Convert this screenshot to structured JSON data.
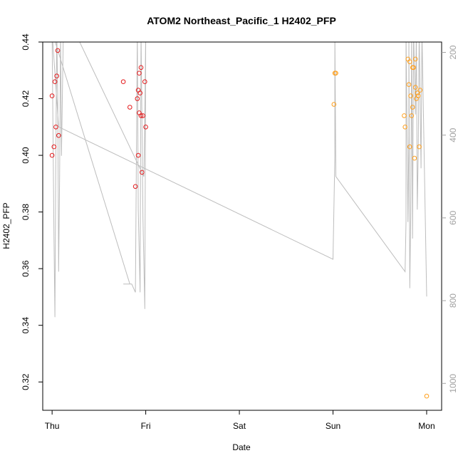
{
  "chart_data": {
    "type": "scatter",
    "title": "ATOM2 Northeast_Pacific_1 H2402_PFP",
    "xlabel": "Date",
    "ylabel": "H2402_PFP",
    "x_ticks": [
      "Thu",
      "Fri",
      "Sat",
      "Sun",
      "Mon"
    ],
    "xlim": [
      -0.1,
      4.16
    ],
    "ylim": [
      0.31,
      0.44
    ],
    "y_ticks": [
      0.32,
      0.34,
      0.36,
      0.38,
      0.4,
      0.42,
      0.44
    ],
    "y2_ticks": [
      200,
      400,
      600,
      800,
      1000
    ],
    "y2lim": [
      1065,
      175
    ],
    "grid": false,
    "colors": {
      "series1": "#e41a1c",
      "series2": "#ff9f1c",
      "altitude_line": "#bdbdbd",
      "axis_right": "#a0a0a0"
    },
    "series": [
      {
        "color": "#e41a1c",
        "points": [
          [
            0.0,
            0.4
          ],
          [
            0.0,
            0.421
          ],
          [
            0.02,
            0.403
          ],
          [
            0.03,
            0.426
          ],
          [
            0.04,
            0.41
          ],
          [
            0.05,
            0.428
          ],
          [
            0.06,
            0.437
          ],
          [
            0.07,
            0.407
          ],
          [
            0.76,
            0.426
          ],
          [
            0.83,
            0.417
          ],
          [
            0.89,
            0.389
          ],
          [
            0.91,
            0.42
          ],
          [
            0.92,
            0.423
          ],
          [
            0.92,
            0.4
          ],
          [
            0.93,
            0.415
          ],
          [
            0.93,
            0.429
          ],
          [
            0.94,
            0.422
          ],
          [
            0.95,
            0.414
          ],
          [
            0.95,
            0.431
          ],
          [
            0.96,
            0.394
          ],
          [
            0.97,
            0.414
          ],
          [
            0.99,
            0.426
          ],
          [
            1.0,
            0.41
          ]
        ]
      },
      {
        "color": "#ff9f1c",
        "points": [
          [
            3.01,
            0.418
          ],
          [
            3.02,
            0.429
          ],
          [
            3.03,
            0.429
          ],
          [
            3.76,
            0.414
          ],
          [
            3.77,
            0.41
          ],
          [
            3.8,
            0.434
          ],
          [
            3.81,
            0.425
          ],
          [
            3.82,
            0.433
          ],
          [
            3.82,
            0.403
          ],
          [
            3.83,
            0.421
          ],
          [
            3.84,
            0.414
          ],
          [
            3.85,
            0.417
          ],
          [
            3.85,
            0.431
          ],
          [
            3.86,
            0.431
          ],
          [
            3.87,
            0.399
          ],
          [
            3.88,
            0.424
          ],
          [
            3.88,
            0.434
          ],
          [
            3.89,
            0.42
          ],
          [
            3.9,
            0.422
          ],
          [
            3.91,
            0.421
          ],
          [
            3.92,
            0.403
          ],
          [
            3.93,
            0.423
          ],
          [
            4.0,
            0.315
          ]
        ]
      }
    ],
    "altitude_profile": [
      [
        0.0,
        150
      ],
      [
        0.02,
        650
      ],
      [
        0.03,
        840
      ],
      [
        0.04,
        450
      ],
      [
        0.05,
        150
      ],
      [
        0.06,
        300
      ],
      [
        0.07,
        730
      ],
      [
        0.08,
        500
      ],
      [
        0.09,
        150
      ],
      [
        0.1,
        450
      ],
      [
        0.12,
        150
      ],
      [
        0.2,
        130
      ],
      [
        0.98,
        500
      ],
      [
        0.99,
        350
      ],
      [
        1.0,
        150
      ],
      [
        0.99,
        820
      ],
      [
        0.97,
        600
      ],
      [
        0.95,
        150
      ],
      [
        0.94,
        780
      ],
      [
        0.92,
        580
      ],
      [
        0.91,
        150
      ],
      [
        0.89,
        780
      ],
      [
        0.85,
        760
      ],
      [
        0.76,
        760
      ],
      [
        0.8,
        760
      ],
      [
        0.83,
        760
      ],
      [
        0.0,
        150
      ],
      [
        0.07,
        380
      ],
      [
        3.0,
        700
      ],
      [
        3.02,
        450
      ],
      [
        3.02,
        150
      ],
      [
        3.03,
        500
      ],
      [
        3.77,
        730
      ],
      [
        3.78,
        610
      ],
      [
        3.78,
        150
      ],
      [
        3.8,
        610
      ],
      [
        3.81,
        400
      ],
      [
        3.81,
        150
      ],
      [
        3.82,
        770
      ],
      [
        3.83,
        600
      ],
      [
        3.84,
        150
      ],
      [
        3.85,
        650
      ],
      [
        3.86,
        150
      ],
      [
        3.88,
        350
      ],
      [
        3.89,
        150
      ],
      [
        3.9,
        580
      ],
      [
        3.91,
        450
      ],
      [
        3.92,
        150
      ],
      [
        3.94,
        480
      ],
      [
        3.95,
        150
      ],
      [
        4.0,
        790
      ]
    ]
  }
}
